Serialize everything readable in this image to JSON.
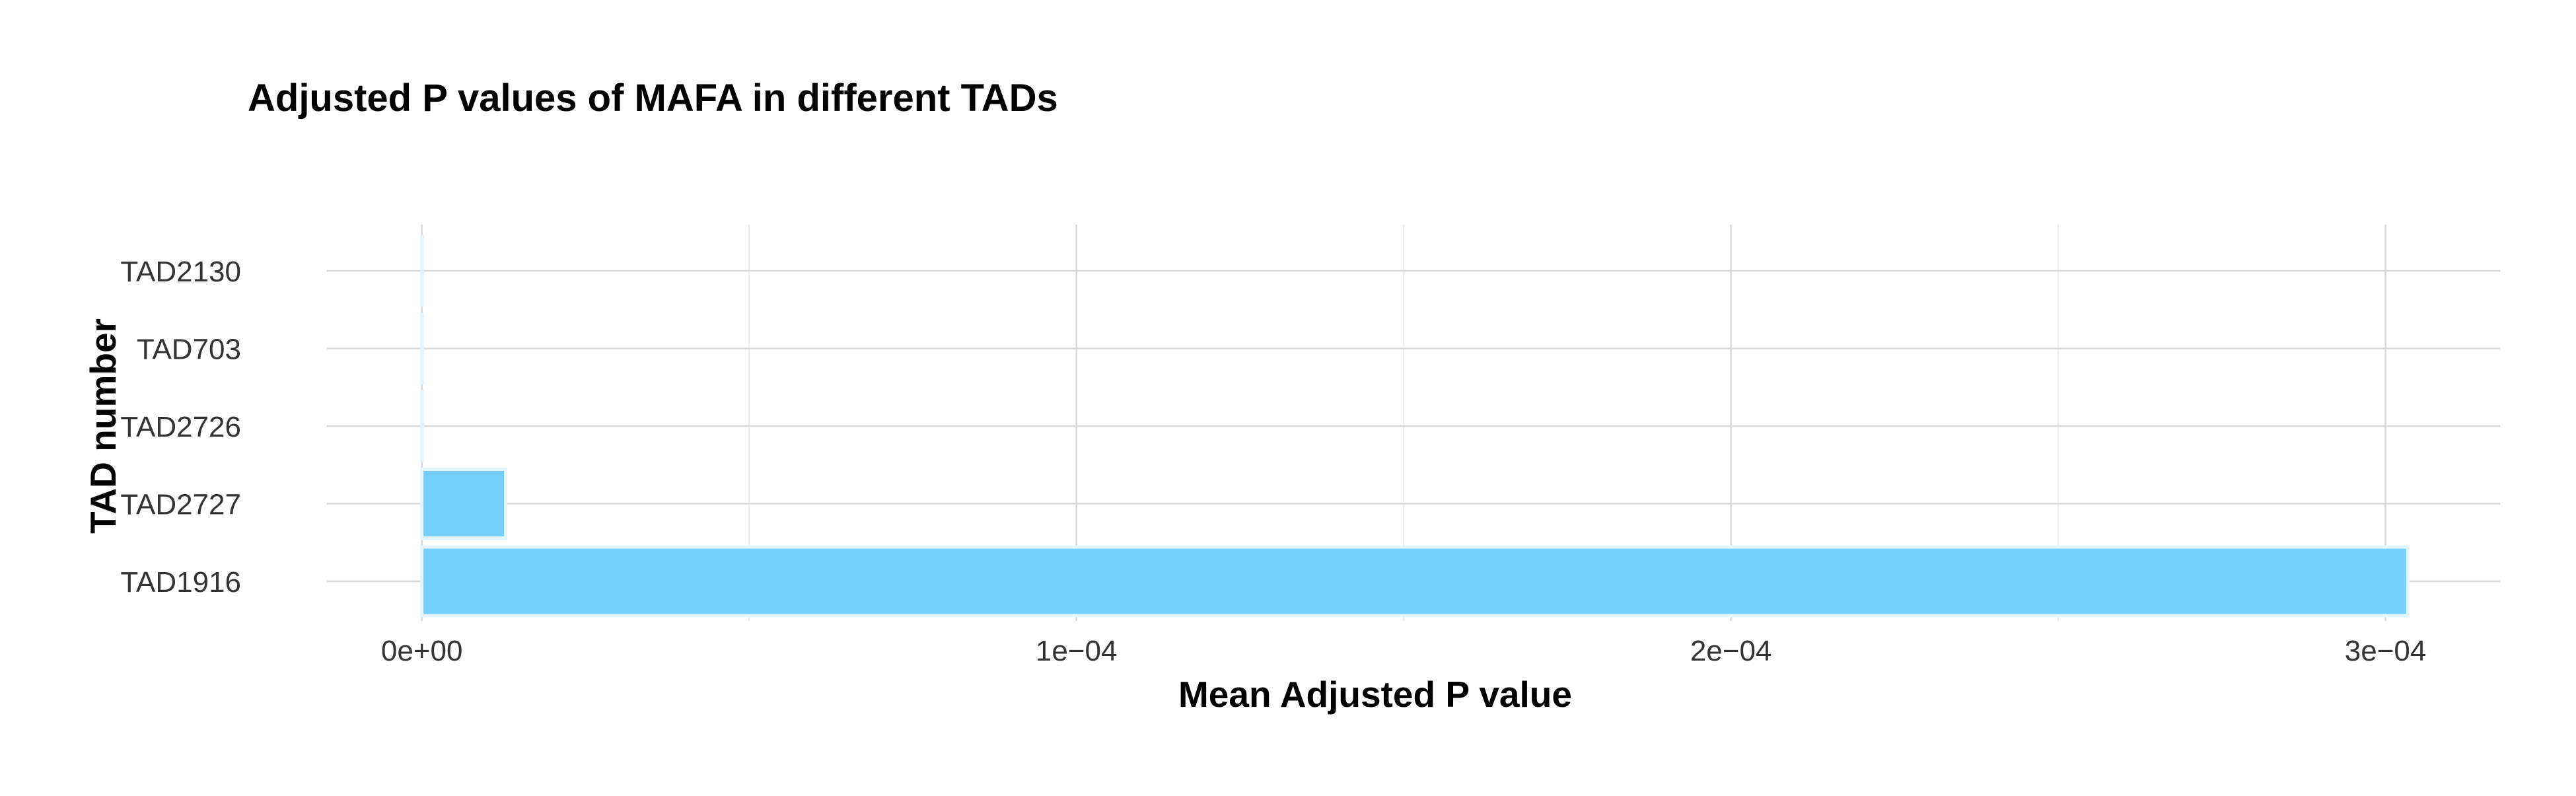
{
  "chart_data": {
    "type": "bar",
    "orientation": "horizontal",
    "title": "Adjusted P values of MAFA in different TADs",
    "xlabel": "Mean Adjusted P value",
    "ylabel": "TAD number",
    "categories": [
      "TAD2130",
      "TAD703",
      "TAD2726",
      "TAD2727",
      "TAD1916"
    ],
    "values": [
      0,
      0,
      0,
      1.28e-05,
      0.0003034
    ],
    "xlim": [
      -1.45e-05,
      0.0003175
    ],
    "xticks": [
      {
        "value": 0,
        "label": "0e+00"
      },
      {
        "value": 0.0001,
        "label": "1e−04"
      },
      {
        "value": 0.0002,
        "label": "2e−04"
      },
      {
        "value": 0.0003,
        "label": "3e−04"
      }
    ],
    "x_minor_ticks": [
      5e-05,
      0.00015,
      0.00025
    ],
    "grid": true,
    "legend": "none",
    "bar_color": "#76cffc",
    "bar_edge_color": "#e3f4ff",
    "grid_color": "#d9d9d9"
  }
}
